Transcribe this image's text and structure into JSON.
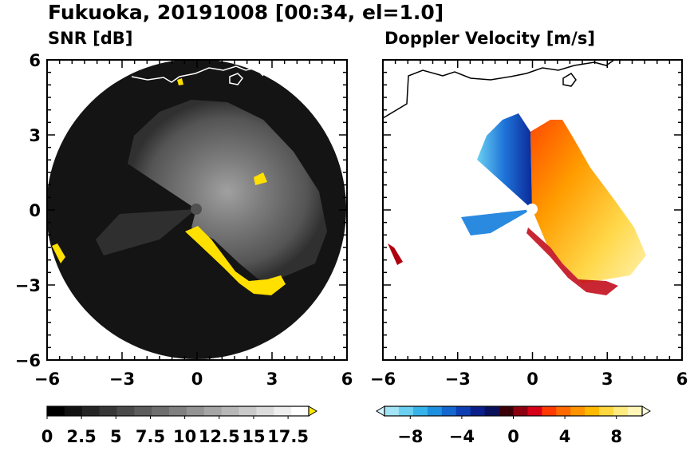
{
  "title": "Fukuoka, 20191008 [00:34, el=1.0]",
  "chart_data": [
    {
      "type": "heatmap",
      "title": "SNR [dB]",
      "x_ticks": [
        -6,
        -3,
        0,
        3,
        6
      ],
      "y_ticks": [
        6,
        3,
        0,
        -3,
        -6
      ],
      "xlim": [
        -6,
        6
      ],
      "ylim": [
        -6,
        6
      ],
      "range_ring_radius": 6,
      "colorbar": {
        "ticks": [
          "0",
          "2.5",
          "5",
          "7.5",
          "10",
          "12.5",
          "15",
          "17.5"
        ],
        "range": [
          0,
          19
        ],
        "extend": "max",
        "colors": [
          "#000000",
          "#121212",
          "#252525",
          "#373737",
          "#4a4a4a",
          "#5c5c5c",
          "#6e6e6e",
          "#808080",
          "#939393",
          "#a5a5a5",
          "#b7b7b7",
          "#cacaca",
          "#dcdcdc",
          "#eeeeee",
          "#ffffff",
          "#ffea00"
        ]
      }
    },
    {
      "type": "heatmap",
      "title": "Doppler Velocity [m/s]",
      "x_ticks": [
        -6,
        -3,
        0,
        3,
        6
      ],
      "y_ticks": [
        6,
        3,
        0,
        -3,
        -6
      ],
      "xlim": [
        -6,
        6
      ],
      "ylim": [
        -6,
        6
      ],
      "colorbar": {
        "ticks": [
          "−8",
          "−4",
          "0",
          "4",
          "8"
        ],
        "range": [
          -10,
          10
        ],
        "extend": "both",
        "colors": [
          "#d5f5ff",
          "#a3e4f7",
          "#6ad0f2",
          "#36b4ea",
          "#1e90e0",
          "#1567d0",
          "#0d3eb4",
          "#0a1f8a",
          "#08105c",
          "#3a0008",
          "#8c0010",
          "#d60018",
          "#ff3a00",
          "#ff6a00",
          "#ff9400",
          "#ffba00",
          "#ffd840",
          "#ffec80",
          "#fff6b8",
          "#fffbe0"
        ]
      }
    }
  ]
}
